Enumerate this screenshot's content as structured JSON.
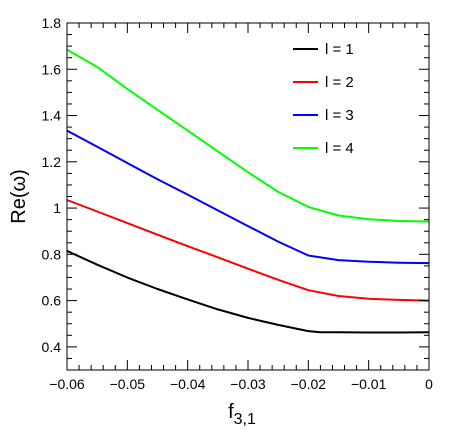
{
  "chart_data": {
    "type": "line",
    "title": "",
    "xlabel": "f",
    "xlabel_sub": "3,1",
    "ylabel": "Re(ω)",
    "xlim": [
      -0.06,
      0
    ],
    "ylim": [
      0.3,
      1.8
    ],
    "x_ticks": [
      -0.06,
      -0.05,
      -0.04,
      -0.03,
      -0.02,
      -0.01,
      0
    ],
    "x_tick_labels": [
      "−0.06",
      "−0.05",
      "−0.04",
      "−0.03",
      "−0.02",
      "−0.01",
      "0"
    ],
    "y_ticks": [
      0.4,
      0.6,
      0.8,
      1,
      1.2,
      1.4,
      1.6,
      1.8
    ],
    "y_tick_labels": [
      "0.4",
      "0.6",
      "0.8",
      "1",
      "1.2",
      "1.4",
      "1.6",
      "1.8"
    ],
    "grid": false,
    "legend_position": "top-right",
    "series": [
      {
        "name": "l = 1",
        "color": "#000000",
        "x": [
          -0.06,
          -0.055,
          -0.05,
          -0.045,
          -0.04,
          -0.035,
          -0.03,
          -0.025,
          -0.02,
          -0.018,
          -0.015,
          -0.01,
          -0.005,
          0
        ],
        "y": [
          0.815,
          0.755,
          0.7,
          0.65,
          0.605,
          0.562,
          0.525,
          0.495,
          0.468,
          0.463,
          0.463,
          0.462,
          0.462,
          0.463
        ]
      },
      {
        "name": "l = 2",
        "color": "#ff0000",
        "x": [
          -0.06,
          -0.055,
          -0.05,
          -0.045,
          -0.04,
          -0.035,
          -0.03,
          -0.025,
          -0.02,
          -0.015,
          -0.01,
          -0.005,
          0
        ],
        "y": [
          1.035,
          0.985,
          0.935,
          0.885,
          0.835,
          0.787,
          0.738,
          0.69,
          0.645,
          0.62,
          0.608,
          0.603,
          0.6
        ]
      },
      {
        "name": "l = 3",
        "color": "#0000ff",
        "x": [
          -0.06,
          -0.055,
          -0.05,
          -0.045,
          -0.04,
          -0.035,
          -0.03,
          -0.025,
          -0.02,
          -0.015,
          -0.01,
          -0.005,
          0
        ],
        "y": [
          1.335,
          1.265,
          1.195,
          1.125,
          1.058,
          0.99,
          0.922,
          0.855,
          0.795,
          0.775,
          0.768,
          0.764,
          0.762
        ]
      },
      {
        "name": "l = 4",
        "color": "#00ff00",
        "x": [
          -0.06,
          -0.055,
          -0.05,
          -0.045,
          -0.04,
          -0.035,
          -0.03,
          -0.025,
          -0.02,
          -0.015,
          -0.01,
          -0.005,
          0
        ],
        "y": [
          1.685,
          1.61,
          1.515,
          1.425,
          1.335,
          1.245,
          1.155,
          1.07,
          1.005,
          0.968,
          0.952,
          0.944,
          0.942
        ]
      }
    ]
  }
}
